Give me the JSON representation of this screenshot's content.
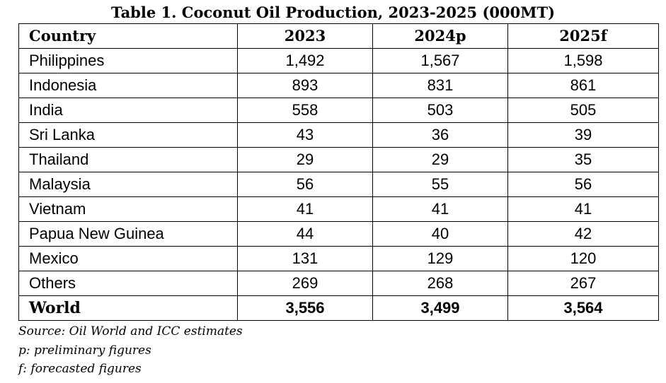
{
  "title": "Table 1. Coconut Oil Production, 2023-2025 (000MT)",
  "headers": [
    "Country",
    "2023",
    "2024p",
    "2025f"
  ],
  "rows": [
    {
      "country": "Philippines",
      "v2023": "1,492",
      "v2024": "1,567",
      "v2025": "1,598"
    },
    {
      "country": "Indonesia",
      "v2023": "893",
      "v2024": "831",
      "v2025": "861"
    },
    {
      "country": "India",
      "v2023": "558",
      "v2024": "503",
      "v2025": "505"
    },
    {
      "country": "Sri Lanka",
      "v2023": "43",
      "v2024": "36",
      "v2025": "39"
    },
    {
      "country": "Thailand",
      "v2023": "29",
      "v2024": "29",
      "v2025": "35"
    },
    {
      "country": "Malaysia",
      "v2023": "56",
      "v2024": "55",
      "v2025": "56"
    },
    {
      "country": "Vietnam",
      "v2023": "41",
      "v2024": "41",
      "v2025": "41"
    },
    {
      "country": "Papua New Guinea",
      "v2023": "44",
      "v2024": "40",
      "v2025": "42"
    },
    {
      "country": "Mexico",
      "v2023": "131",
      "v2024": "129",
      "v2025": "120"
    },
    {
      "country": "Others",
      "v2023": "269",
      "v2024": "268",
      "v2025": "267"
    }
  ],
  "total": {
    "country": "World",
    "v2023": "3,556",
    "v2024": "3,499",
    "v2025": "3,564"
  },
  "notes": [
    "Source: Oil World and ICC estimates",
    "p: preliminary figures",
    "f: forecasted figures"
  ]
}
